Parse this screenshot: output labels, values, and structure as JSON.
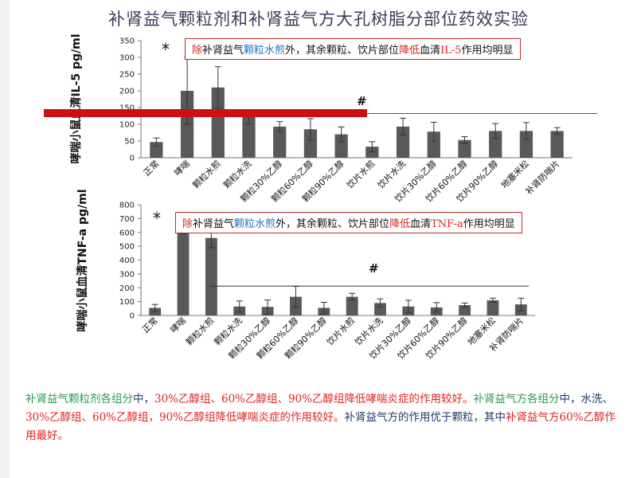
{
  "title": "补肾益气颗粒剂和补肾益气方大孔树脂分部位药效实验",
  "callout1": {
    "p1": "除",
    "p2": "补肾益气",
    "p3": "颗粒水煎",
    "p4": "外，其余颗粒、饮片部位",
    "p5": "降低",
    "p6": "血清",
    "p7": "IL-5",
    "p8": "作用均明显"
  },
  "callout2": {
    "p1": "除",
    "p2": "补肾益气",
    "p3": "颗粒水煎",
    "p4": "外，其余颗粒、饮片部位",
    "p5": "降低",
    "p6": "血清",
    "p7": "TNF-a",
    "p8": "作用均明显"
  },
  "markers": {
    "star": "*",
    "hash": "#"
  },
  "summary": {
    "s1": "补肾益气颗粒剂各组分",
    "s2": "中，",
    "s3": "30%乙醇组、60%乙醇组、90%乙醇组降低哮喘炎症的作用较好。",
    "s4": "补肾益气方各组分",
    "s5": "中，水洗、",
    "s6": "30%乙醇组、60%乙醇组，90%乙醇组降低哮喘炎症的作用较好。",
    "s7": "补肾益气方",
    "s8": "的作用优于颗粒，其中",
    "s9": "补肾益气方60%乙醇作用最好。"
  },
  "colors": {
    "bar": "#595959",
    "accent_red": "#e0231f",
    "accent_blue": "#1e6fc0",
    "accent_green": "#2e9a4c"
  },
  "chart_data": [
    {
      "type": "bar",
      "ylabel": "哮喘小鼠血清IL-5 pg/ml",
      "ylim": [
        0,
        350
      ],
      "yticks": [
        0,
        50,
        100,
        150,
        200,
        250,
        300,
        350
      ],
      "categories": [
        "正常",
        "哮喘",
        "颗粒水煎",
        "颗粒水洗",
        "颗粒30%乙醇",
        "颗粒60%乙醇",
        "颗粒90%乙醇",
        "饮片水煎",
        "饮片水洗",
        "饮片30%乙醇",
        "饮片60%乙醇",
        "饮片90%乙醇",
        "地塞米松",
        "补肾防喘片"
      ],
      "values": [
        47,
        200,
        210,
        122,
        93,
        85,
        70,
        33,
        93,
        78,
        53,
        80,
        80,
        80
      ],
      "errors": [
        12,
        100,
        62,
        22,
        15,
        32,
        22,
        15,
        25,
        28,
        10,
        22,
        25,
        10
      ]
    },
    {
      "type": "bar",
      "ylabel": "哮喘小鼠血清TNF-a pg/ml",
      "ylim": [
        0,
        800
      ],
      "yticks": [
        0,
        100,
        200,
        300,
        400,
        500,
        600,
        700,
        800
      ],
      "categories": [
        "正常",
        "哮喘",
        "颗粒水煎",
        "颗粒水洗",
        "颗粒30%乙醇",
        "颗粒60%乙醇",
        "颗粒90%乙醇",
        "饮片水煎",
        "饮片水洗",
        "饮片30%乙醇",
        "饮片60%乙醇",
        "饮片90%乙醇",
        "地塞米松",
        "补肾防喘片"
      ],
      "values": [
        55,
        650,
        560,
        65,
        62,
        135,
        55,
        135,
        90,
        65,
        58,
        75,
        110,
        80
      ],
      "errors": [
        25,
        60,
        70,
        40,
        50,
        75,
        40,
        25,
        30,
        45,
        35,
        15,
        15,
        45
      ]
    }
  ]
}
